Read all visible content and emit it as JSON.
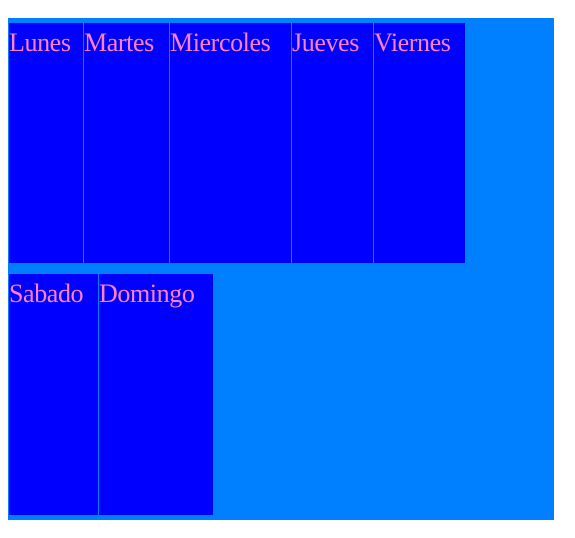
{
  "days": {
    "lunes": "Lunes",
    "martes": "Martes",
    "miercoles": "Miercoles",
    "jueves": "Jueves",
    "viernes": "Viernes",
    "sabado": "Sabado",
    "domingo": "Domingo"
  },
  "colors": {
    "page_background": "#ffffff",
    "container_background": "#0080ff",
    "cell_background": "#0000ff",
    "cell_text": "#ff80c0"
  }
}
